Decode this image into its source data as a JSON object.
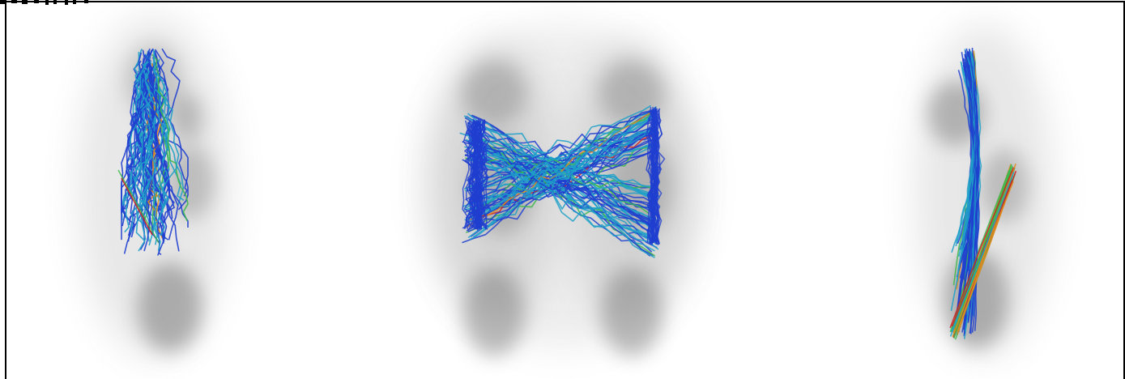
{
  "figure": {
    "panels": [
      {
        "id": "panel-left",
        "view": "narrow-vertical-cluster"
      },
      {
        "id": "panel-center",
        "view": "crossing-bowtie"
      },
      {
        "id": "panel-right",
        "view": "diagonal-vertical-bundle"
      }
    ],
    "colors": {
      "density_fill": "#6f6f6f",
      "trajectory_dominant": "#1f3fcf",
      "trajectory_mid": "#1fa0c8",
      "trajectory_green": "#3cb84a",
      "trajectory_orange": "#e08a1c",
      "trajectory_red": "#cc2222",
      "frame": "#000000",
      "background": "#ffffff"
    }
  }
}
